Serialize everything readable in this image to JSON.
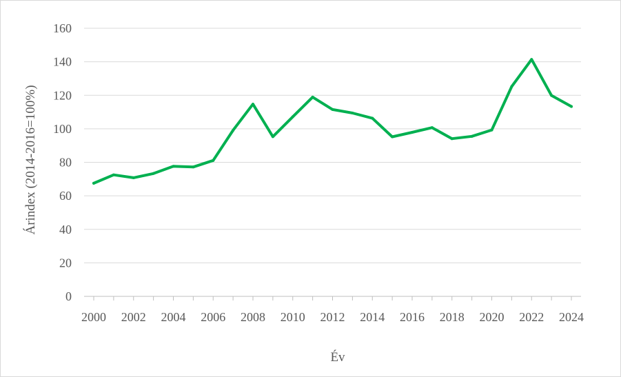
{
  "chart_data": {
    "type": "line",
    "xlabel": "Év",
    "ylabel": "Árindex  (2014-2016=100%)",
    "ylim": [
      0,
      160
    ],
    "yticks": [
      0,
      20,
      40,
      60,
      80,
      100,
      120,
      140,
      160
    ],
    "xlim": [
      2000,
      2024
    ],
    "xtick_labels": [
      "2000",
      "2002",
      "2004",
      "2006",
      "2008",
      "2010",
      "2012",
      "2014",
      "2016",
      "2018",
      "2020",
      "2022",
      "2024"
    ],
    "grid": true,
    "legend": "none",
    "series": [
      {
        "color": "#00b050",
        "x": [
          2000,
          2001,
          2002,
          2003,
          2004,
          2005,
          2006,
          2007,
          2008,
          2009,
          2010,
          2011,
          2012,
          2013,
          2014,
          2015,
          2016,
          2017,
          2018,
          2019,
          2020,
          2021,
          2022,
          2023,
          2024
        ],
        "values": [
          67.5,
          72.5,
          70.8,
          73.3,
          77.6,
          77.2,
          81.1,
          99.1,
          114.7,
          95.3,
          107.2,
          118.9,
          111.5,
          109.4,
          106.3,
          95.2,
          97.9,
          100.7,
          94.1,
          95.5,
          99.3,
          125.2,
          141.4,
          119.9,
          113.3
        ]
      }
    ]
  }
}
